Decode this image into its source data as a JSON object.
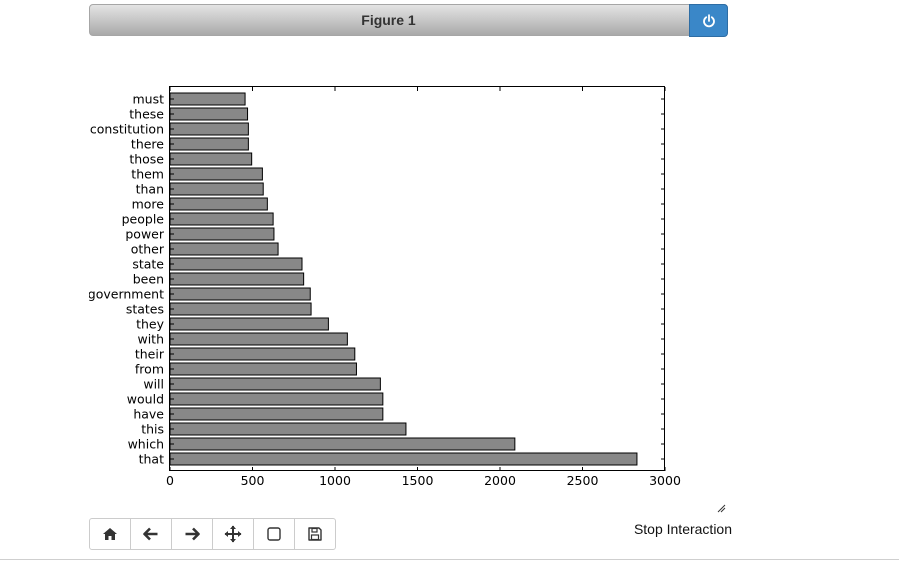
{
  "window": {
    "title": "Figure 1"
  },
  "controls": {
    "stop_label": "Stop Interaction"
  },
  "toolbar": {
    "buttons": [
      {
        "name": "home-button",
        "icon": "home-icon"
      },
      {
        "name": "back-button",
        "icon": "arrow-left-icon"
      },
      {
        "name": "forward-button",
        "icon": "arrow-right-icon"
      },
      {
        "name": "pan-button",
        "icon": "move-icon"
      },
      {
        "name": "zoom-button",
        "icon": "square-icon"
      },
      {
        "name": "save-button",
        "icon": "floppy-icon"
      }
    ]
  },
  "colors": {
    "bar_fill": "#888888",
    "bar_edge": "#000000",
    "close_button": "#3a87c8"
  },
  "chart_data": {
    "type": "bar",
    "orientation": "horizontal",
    "title": "",
    "xlabel": "",
    "ylabel": "",
    "xlim": [
      0,
      3000
    ],
    "xticks": [
      0,
      500,
      1000,
      1500,
      2000,
      2500,
      3000
    ],
    "grid": false,
    "categories": [
      "that",
      "which",
      "this",
      "have",
      "would",
      "will",
      "from",
      "their",
      "with",
      "they",
      "states",
      "government",
      "been",
      "state",
      "other",
      "power",
      "people",
      "more",
      "than",
      "them",
      "those",
      "there",
      "constitution",
      "these",
      "must"
    ],
    "values": [
      2830,
      2090,
      1430,
      1290,
      1290,
      1275,
      1130,
      1120,
      1075,
      960,
      855,
      850,
      810,
      800,
      655,
      630,
      625,
      590,
      565,
      560,
      495,
      475,
      475,
      470,
      455
    ]
  }
}
